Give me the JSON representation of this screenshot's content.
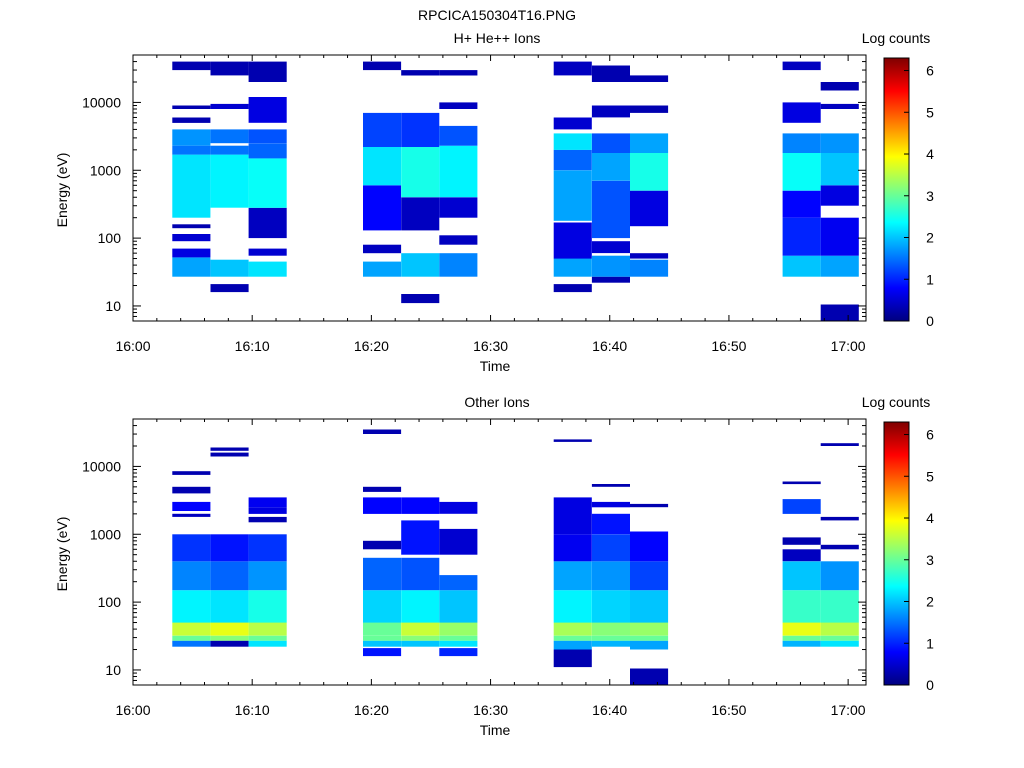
{
  "figure": {
    "title": "RPCICA150304T16.PNG",
    "colorbar_label": "Log counts",
    "colorbar_ticks": [
      "0",
      "1",
      "2",
      "3",
      "4",
      "5",
      "6"
    ],
    "colorbar_range": [
      0,
      6.3
    ]
  },
  "panels": [
    {
      "title": "H+ He++ Ions",
      "xlabel": "Time",
      "ylabel": "Energy (eV)",
      "x_ticks": [
        "16:00",
        "16:10",
        "16:20",
        "16:30",
        "16:40",
        "16:50",
        "17:00"
      ],
      "y_ticks": [
        "10",
        "100",
        "1000",
        "10000"
      ]
    },
    {
      "title": "Other Ions",
      "xlabel": "Time",
      "ylabel": "Energy (eV)",
      "x_ticks": [
        "16:00",
        "16:10",
        "16:20",
        "16:30",
        "16:40",
        "16:50",
        "17:00"
      ],
      "y_ticks": [
        "10",
        "100",
        "1000",
        "10000"
      ]
    }
  ],
  "chart_data": [
    {
      "type": "heatmap",
      "title": "H+ He++ Ions",
      "xlabel": "Time",
      "ylabel": "Energy (eV)",
      "x_range_minutes": [
        0,
        61.5
      ],
      "x_origin": "16:00",
      "ylim": [
        6,
        50000
      ],
      "y_scale": "log",
      "colorscale_label": "Log counts",
      "colorscale_range": [
        0,
        6.3
      ],
      "columns": [
        {
          "t_start": 3.3,
          "t_end": 6.5,
          "bands": [
            [
              27,
              52,
              1.8
            ],
            [
              52,
              70,
              0.6
            ],
            [
              90,
              115,
              0.5
            ],
            [
              140,
              160,
              0.3
            ],
            [
              200,
              1700,
              2.2
            ],
            [
              1700,
              2300,
              1.5
            ],
            [
              2300,
              4000,
              1.7
            ],
            [
              5000,
              6000,
              0.3
            ],
            [
              8000,
              9000,
              0.3
            ],
            [
              30000,
              40000,
              0.3
            ]
          ]
        },
        {
          "t_start": 6.5,
          "t_end": 9.7,
          "bands": [
            [
              16,
              21,
              0.3
            ],
            [
              27,
              48,
              2.0
            ],
            [
              280,
              1700,
              2.3
            ],
            [
              1700,
              2300,
              1.5
            ],
            [
              2500,
              4000,
              1.5
            ],
            [
              8000,
              9500,
              0.5
            ],
            [
              25000,
              40000,
              0.3
            ]
          ]
        },
        {
          "t_start": 9.7,
          "t_end": 12.9,
          "bands": [
            [
              27,
              45,
              2.2
            ],
            [
              55,
              70,
              0.5
            ],
            [
              100,
              280,
              0.4
            ],
            [
              280,
              1500,
              2.4
            ],
            [
              1500,
              2500,
              1.4
            ],
            [
              2500,
              4000,
              1.3
            ],
            [
              5000,
              12000,
              0.6
            ],
            [
              20000,
              40000,
              0.3
            ]
          ]
        },
        {
          "t_start": 19.3,
          "t_end": 22.5,
          "bands": [
            [
              27,
              45,
              1.8
            ],
            [
              60,
              80,
              0.4
            ],
            [
              130,
              600,
              0.8
            ],
            [
              600,
              2200,
              2.2
            ],
            [
              2200,
              7000,
              1.2
            ],
            [
              30000,
              40000,
              0.3
            ]
          ]
        },
        {
          "t_start": 22.5,
          "t_end": 25.7,
          "bands": [
            [
              11,
              15,
              0.3
            ],
            [
              27,
              60,
              2.0
            ],
            [
              130,
              400,
              0.4
            ],
            [
              400,
              2200,
              2.5
            ],
            [
              2200,
              7000,
              1.1
            ],
            [
              25000,
              30000,
              0.3
            ]
          ]
        },
        {
          "t_start": 25.7,
          "t_end": 28.9,
          "bands": [
            [
              27,
              60,
              1.6
            ],
            [
              80,
              110,
              0.4
            ],
            [
              200,
              400,
              0.5
            ],
            [
              400,
              2300,
              2.3
            ],
            [
              2300,
              4500,
              1.3
            ],
            [
              8000,
              10000,
              0.4
            ],
            [
              25000,
              30000,
              0.3
            ]
          ]
        },
        {
          "t_start": 35.3,
          "t_end": 38.5,
          "bands": [
            [
              16,
              21,
              0.3
            ],
            [
              27,
              50,
              1.8
            ],
            [
              50,
              170,
              0.6
            ],
            [
              180,
              1000,
              1.8
            ],
            [
              1000,
              2000,
              1.4
            ],
            [
              2000,
              3500,
              2.2
            ],
            [
              4000,
              6000,
              0.5
            ],
            [
              25000,
              40000,
              0.4
            ]
          ]
        },
        {
          "t_start": 38.5,
          "t_end": 41.7,
          "bands": [
            [
              22,
              27,
              0.3
            ],
            [
              27,
              55,
              1.7
            ],
            [
              60,
              90,
              0.5
            ],
            [
              100,
              700,
              1.3
            ],
            [
              700,
              1800,
              1.8
            ],
            [
              1800,
              3500,
              1.3
            ],
            [
              6000,
              9000,
              0.4
            ],
            [
              20000,
              35000,
              0.3
            ]
          ]
        },
        {
          "t_start": 41.7,
          "t_end": 44.9,
          "bands": [
            [
              27,
              48,
              1.6
            ],
            [
              50,
              60,
              0.4
            ],
            [
              150,
              500,
              0.6
            ],
            [
              500,
              1800,
              2.5
            ],
            [
              1800,
              3500,
              1.8
            ],
            [
              7000,
              9000,
              0.3
            ],
            [
              20000,
              25000,
              0.3
            ]
          ]
        },
        {
          "t_start": 54.5,
          "t_end": 57.7,
          "bands": [
            [
              27,
              55,
              2.0
            ],
            [
              55,
              200,
              1.0
            ],
            [
              200,
              500,
              0.8
            ],
            [
              500,
              1800,
              2.4
            ],
            [
              1800,
              3500,
              1.6
            ],
            [
              5000,
              10000,
              0.6
            ],
            [
              30000,
              40000,
              0.4
            ]
          ]
        },
        {
          "t_start": 57.7,
          "t_end": 60.9,
          "bands": [
            [
              6,
              10.5,
              0.3
            ],
            [
              27,
              55,
              1.8
            ],
            [
              55,
              200,
              0.7
            ],
            [
              300,
              600,
              0.6
            ],
            [
              600,
              1800,
              2.0
            ],
            [
              1800,
              3500,
              1.7
            ],
            [
              8000,
              9500,
              0.4
            ],
            [
              15000,
              20000,
              0.3
            ]
          ]
        }
      ]
    },
    {
      "type": "heatmap",
      "title": "Other Ions",
      "xlabel": "Time",
      "ylabel": "Energy (eV)",
      "x_range_minutes": [
        0,
        61.5
      ],
      "x_origin": "16:00",
      "ylim": [
        6,
        50000
      ],
      "y_scale": "log",
      "colorscale_label": "Log counts",
      "colorscale_range": [
        0,
        6.3
      ],
      "columns": [
        {
          "t_start": 3.3,
          "t_end": 6.5,
          "bands": [
            [
              22,
              27,
              1.5
            ],
            [
              27,
              32,
              3.0
            ],
            [
              32,
              50,
              3.6
            ],
            [
              50,
              150,
              2.3
            ],
            [
              150,
              400,
              1.6
            ],
            [
              400,
              1000,
              1.1
            ],
            [
              1800,
              2000,
              0.4
            ],
            [
              2200,
              3000,
              0.8
            ],
            [
              4000,
              5000,
              0.3
            ],
            [
              7500,
              8500,
              0.3
            ]
          ]
        },
        {
          "t_start": 6.5,
          "t_end": 9.7,
          "bands": [
            [
              22,
              27,
              0.3
            ],
            [
              27,
              32,
              3.2
            ],
            [
              32,
              50,
              3.8
            ],
            [
              50,
              150,
              2.2
            ],
            [
              150,
              400,
              1.4
            ],
            [
              400,
              1000,
              0.9
            ],
            [
              14000,
              16000,
              0.3
            ],
            [
              17000,
              19000,
              0.3
            ]
          ]
        },
        {
          "t_start": 9.7,
          "t_end": 12.9,
          "bands": [
            [
              22,
              27,
              2.2
            ],
            [
              27,
              32,
              3.0
            ],
            [
              32,
              50,
              3.5
            ],
            [
              50,
              150,
              2.5
            ],
            [
              150,
              400,
              1.7
            ],
            [
              400,
              1000,
              1.1
            ],
            [
              1500,
              1800,
              0.3
            ],
            [
              2000,
              2500,
              0.6
            ],
            [
              2500,
              3500,
              0.7
            ]
          ]
        },
        {
          "t_start": 19.3,
          "t_end": 22.5,
          "bands": [
            [
              16,
              21,
              0.9
            ],
            [
              22,
              27,
              2.0
            ],
            [
              27,
              32,
              3.0
            ],
            [
              32,
              50,
              3.0
            ],
            [
              50,
              150,
              2.1
            ],
            [
              150,
              450,
              1.4
            ],
            [
              600,
              800,
              0.3
            ],
            [
              2000,
              3500,
              0.8
            ],
            [
              4200,
              5000,
              0.3
            ],
            [
              30000,
              35000,
              0.3
            ]
          ]
        },
        {
          "t_start": 22.5,
          "t_end": 25.7,
          "bands": [
            [
              22,
              27,
              2.0
            ],
            [
              27,
              32,
              3.2
            ],
            [
              32,
              50,
              3.6
            ],
            [
              50,
              150,
              2.3
            ],
            [
              150,
              450,
              1.3
            ],
            [
              500,
              1600,
              0.9
            ],
            [
              2000,
              3500,
              0.8
            ]
          ]
        },
        {
          "t_start": 25.7,
          "t_end": 28.9,
          "bands": [
            [
              16,
              21,
              1.0
            ],
            [
              22,
              27,
              2.2
            ],
            [
              27,
              32,
              3.0
            ],
            [
              32,
              50,
              3.3
            ],
            [
              50,
              150,
              2.0
            ],
            [
              150,
              250,
              1.4
            ],
            [
              500,
              1200,
              0.5
            ],
            [
              2000,
              3000,
              0.6
            ]
          ]
        },
        {
          "t_start": 35.3,
          "t_end": 38.5,
          "bands": [
            [
              11,
              20,
              0.3
            ],
            [
              20,
              27,
              1.8
            ],
            [
              27,
              32,
              3.0
            ],
            [
              32,
              50,
              3.4
            ],
            [
              50,
              150,
              2.3
            ],
            [
              150,
              400,
              1.8
            ],
            [
              400,
              1000,
              0.7
            ],
            [
              1000,
              3500,
              0.6
            ],
            [
              23000,
              25000,
              0.3
            ]
          ]
        },
        {
          "t_start": 38.5,
          "t_end": 41.7,
          "bands": [
            [
              22,
              27,
              1.9
            ],
            [
              27,
              32,
              3.0
            ],
            [
              32,
              50,
              3.2
            ],
            [
              50,
              150,
              2.1
            ],
            [
              150,
              400,
              1.7
            ],
            [
              400,
              1000,
              1.2
            ],
            [
              1000,
              2000,
              0.9
            ],
            [
              2500,
              3000,
              0.6
            ],
            [
              5000,
              5500,
              0.3
            ]
          ]
        },
        {
          "t_start": 41.7,
          "t_end": 44.9,
          "bands": [
            [
              6,
              10.5,
              0.3
            ],
            [
              20,
              27,
              1.8
            ],
            [
              27,
              32,
              3.0
            ],
            [
              32,
              50,
              3.3
            ],
            [
              50,
              150,
              2.0
            ],
            [
              150,
              400,
              1.2
            ],
            [
              400,
              1100,
              0.8
            ],
            [
              2500,
              2800,
              0.3
            ]
          ]
        },
        {
          "t_start": 54.5,
          "t_end": 57.7,
          "bands": [
            [
              22,
              27,
              1.9
            ],
            [
              27,
              32,
              3.0
            ],
            [
              32,
              50,
              3.8
            ],
            [
              50,
              150,
              2.7
            ],
            [
              150,
              400,
              2.0
            ],
            [
              400,
              600,
              0.4
            ],
            [
              700,
              900,
              0.3
            ],
            [
              2000,
              3300,
              1.2
            ],
            [
              5500,
              6000,
              0.3
            ]
          ]
        },
        {
          "t_start": 57.7,
          "t_end": 60.9,
          "bands": [
            [
              22,
              27,
              2.2
            ],
            [
              27,
              32,
              3.0
            ],
            [
              32,
              50,
              3.5
            ],
            [
              50,
              150,
              2.7
            ],
            [
              150,
              400,
              1.7
            ],
            [
              600,
              700,
              0.3
            ],
            [
              1600,
              1800,
              0.3
            ],
            [
              20000,
              22000,
              0.3
            ]
          ]
        }
      ]
    }
  ]
}
